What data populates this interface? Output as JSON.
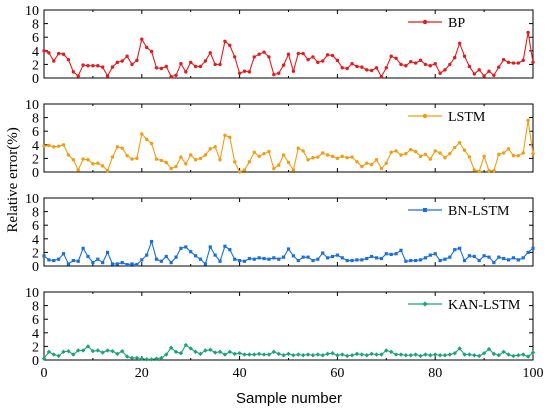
{
  "chart_data": {
    "type": "line",
    "xlabel": "Sample number",
    "ylabel": "Relative error(%)",
    "xlim": [
      0,
      100
    ],
    "ylim": [
      0,
      10
    ],
    "x_ticks": [
      0,
      20,
      40,
      60,
      80,
      100
    ],
    "y_ticks": [
      0,
      2,
      4,
      6,
      8,
      10
    ],
    "legend_position": "top-right",
    "grid": false,
    "x": [
      0,
      1,
      2,
      3,
      4,
      5,
      6,
      7,
      8,
      9,
      10,
      11,
      12,
      13,
      14,
      15,
      16,
      17,
      18,
      19,
      20,
      21,
      22,
      23,
      24,
      25,
      26,
      27,
      28,
      29,
      30,
      31,
      32,
      33,
      34,
      35,
      36,
      37,
      38,
      39,
      40,
      41,
      42,
      43,
      44,
      45,
      46,
      47,
      48,
      49,
      50,
      51,
      52,
      53,
      54,
      55,
      56,
      57,
      58,
      59,
      60,
      61,
      62,
      63,
      64,
      65,
      66,
      67,
      68,
      69,
      70,
      71,
      72,
      73,
      74,
      75,
      76,
      77,
      78,
      79,
      80,
      81,
      82,
      83,
      84,
      85,
      86,
      87,
      88,
      89,
      90,
      91,
      92,
      93,
      94,
      95,
      96,
      97,
      98,
      99,
      100
    ],
    "series": [
      {
        "name": "BP",
        "color": "#e41a1c",
        "marker": "circle",
        "values": [
          4.0,
          3.7,
          2.5,
          3.6,
          3.5,
          2.7,
          0.9,
          0.3,
          1.9,
          1.8,
          1.8,
          1.8,
          1.6,
          0.3,
          1.6,
          2.3,
          2.5,
          3.2,
          2.0,
          2.6,
          5.7,
          4.5,
          3.9,
          1.5,
          1.4,
          1.7,
          0.2,
          0.4,
          2.1,
          0.9,
          2.3,
          1.7,
          1.7,
          2.5,
          3.7,
          2.0,
          2.0,
          5.4,
          4.8,
          3.1,
          0.7,
          1.0,
          0.9,
          3.1,
          3.5,
          3.8,
          3.1,
          0.5,
          0.7,
          1.9,
          3.5,
          1.0,
          3.6,
          3.6,
          2.7,
          3.1,
          2.3,
          2.5,
          3.4,
          3.3,
          2.6,
          1.5,
          1.4,
          2.1,
          1.7,
          1.6,
          1.2,
          1.1,
          1.5,
          0.2,
          1.5,
          3.2,
          2.9,
          2.0,
          1.8,
          2.4,
          2.2,
          2.6,
          2.0,
          1.8,
          2.1,
          0.7,
          1.2,
          2.0,
          3.0,
          5.1,
          3.2,
          1.7,
          0.6,
          1.2,
          0.3,
          1.0,
          0.4,
          1.6,
          2.7,
          2.3,
          2.2,
          2.2,
          2.6,
          6.7,
          2.3
        ]
      },
      {
        "name": "LSTM",
        "color": "#f39c12",
        "marker": "circle",
        "values": [
          3.8,
          3.9,
          3.7,
          3.8,
          4.0,
          2.5,
          1.8,
          0.3,
          1.9,
          1.8,
          1.2,
          1.3,
          0.9,
          0.2,
          2.2,
          3.7,
          3.5,
          2.4,
          1.9,
          2.0,
          5.6,
          4.8,
          4.2,
          1.9,
          1.7,
          1.4,
          0.5,
          0.8,
          2.2,
          1.2,
          2.5,
          1.8,
          2.0,
          2.5,
          3.4,
          3.7,
          1.8,
          5.4,
          5.1,
          1.5,
          0.0,
          0.3,
          1.5,
          2.9,
          2.3,
          2.7,
          3.0,
          0.5,
          1.0,
          2.5,
          1.4,
          0.3,
          3.5,
          3.1,
          1.8,
          2.1,
          2.2,
          2.8,
          2.5,
          2.3,
          2.0,
          2.3,
          2.1,
          2.2,
          1.5,
          0.8,
          1.3,
          1.1,
          1.8,
          0.5,
          1.3,
          2.9,
          3.1,
          2.5,
          2.7,
          3.3,
          3.0,
          2.3,
          2.6,
          1.9,
          3.1,
          2.8,
          2.1,
          2.7,
          3.6,
          4.3,
          3.2,
          2.2,
          0.3,
          0.1,
          2.3,
          0.2,
          0.2,
          2.6,
          2.8,
          3.4,
          2.4,
          2.4,
          2.8,
          7.6,
          2.7
        ]
      },
      {
        "name": "BN-LSTM",
        "color": "#1a6fdf",
        "marker": "square",
        "values": [
          1.5,
          0.9,
          0.8,
          1.0,
          1.8,
          0.3,
          0.8,
          0.7,
          2.6,
          1.4,
          0.5,
          1.0,
          0.5,
          2.0,
          0.3,
          0.3,
          0.5,
          0.2,
          0.3,
          0.2,
          0.9,
          1.6,
          3.6,
          1.0,
          0.7,
          1.4,
          0.5,
          1.3,
          2.6,
          2.8,
          2.1,
          1.5,
          1.0,
          0.3,
          2.8,
          1.6,
          0.7,
          2.9,
          2.4,
          1.0,
          0.8,
          0.7,
          1.1,
          1.0,
          1.2,
          1.1,
          1.0,
          1.2,
          1.0,
          1.3,
          2.5,
          1.5,
          0.8,
          1.3,
          1.3,
          0.8,
          1.0,
          1.9,
          1.2,
          1.4,
          1.6,
          1.2,
          0.8,
          0.8,
          0.9,
          0.9,
          1.1,
          1.4,
          1.2,
          1.1,
          1.8,
          1.7,
          1.8,
          2.3,
          0.7,
          0.8,
          0.8,
          0.9,
          1.2,
          1.6,
          1.8,
          0.8,
          1.0,
          1.3,
          2.4,
          2.6,
          0.8,
          1.5,
          1.4,
          0.8,
          1.5,
          1.3,
          0.5,
          1.3,
          1.1,
          0.9,
          1.2,
          0.9,
          1.2,
          2.0,
          2.6
        ]
      },
      {
        "name": "KAN-LSTM",
        "color": "#1aa37a",
        "marker": "diamond",
        "values": [
          0.2,
          1.2,
          0.8,
          0.6,
          1.2,
          1.3,
          0.8,
          1.4,
          1.4,
          2.0,
          1.3,
          1.4,
          1.1,
          1.4,
          1.3,
          0.9,
          1.3,
          0.5,
          0.3,
          0.3,
          0.2,
          0.1,
          0.1,
          0.2,
          0.3,
          0.8,
          1.8,
          1.2,
          1.0,
          2.2,
          1.7,
          1.2,
          0.9,
          1.4,
          1.5,
          1.1,
          1.2,
          0.8,
          1.2,
          0.9,
          1.0,
          0.8,
          0.8,
          0.8,
          0.9,
          0.8,
          0.8,
          1.2,
          0.9,
          0.7,
          0.9,
          0.7,
          0.8,
          0.7,
          0.8,
          0.7,
          0.8,
          0.7,
          0.9,
          1.0,
          0.7,
          0.8,
          0.6,
          0.7,
          0.9,
          0.8,
          0.7,
          0.9,
          0.8,
          0.8,
          1.4,
          1.2,
          0.8,
          0.8,
          0.7,
          0.7,
          0.8,
          0.6,
          0.8,
          0.7,
          0.8,
          0.7,
          0.7,
          0.8,
          1.0,
          1.7,
          0.8,
          0.8,
          0.7,
          0.6,
          1.0,
          1.6,
          0.9,
          0.7,
          1.2,
          0.8,
          0.6,
          0.7,
          0.8,
          0.5,
          1.1
        ]
      }
    ]
  }
}
